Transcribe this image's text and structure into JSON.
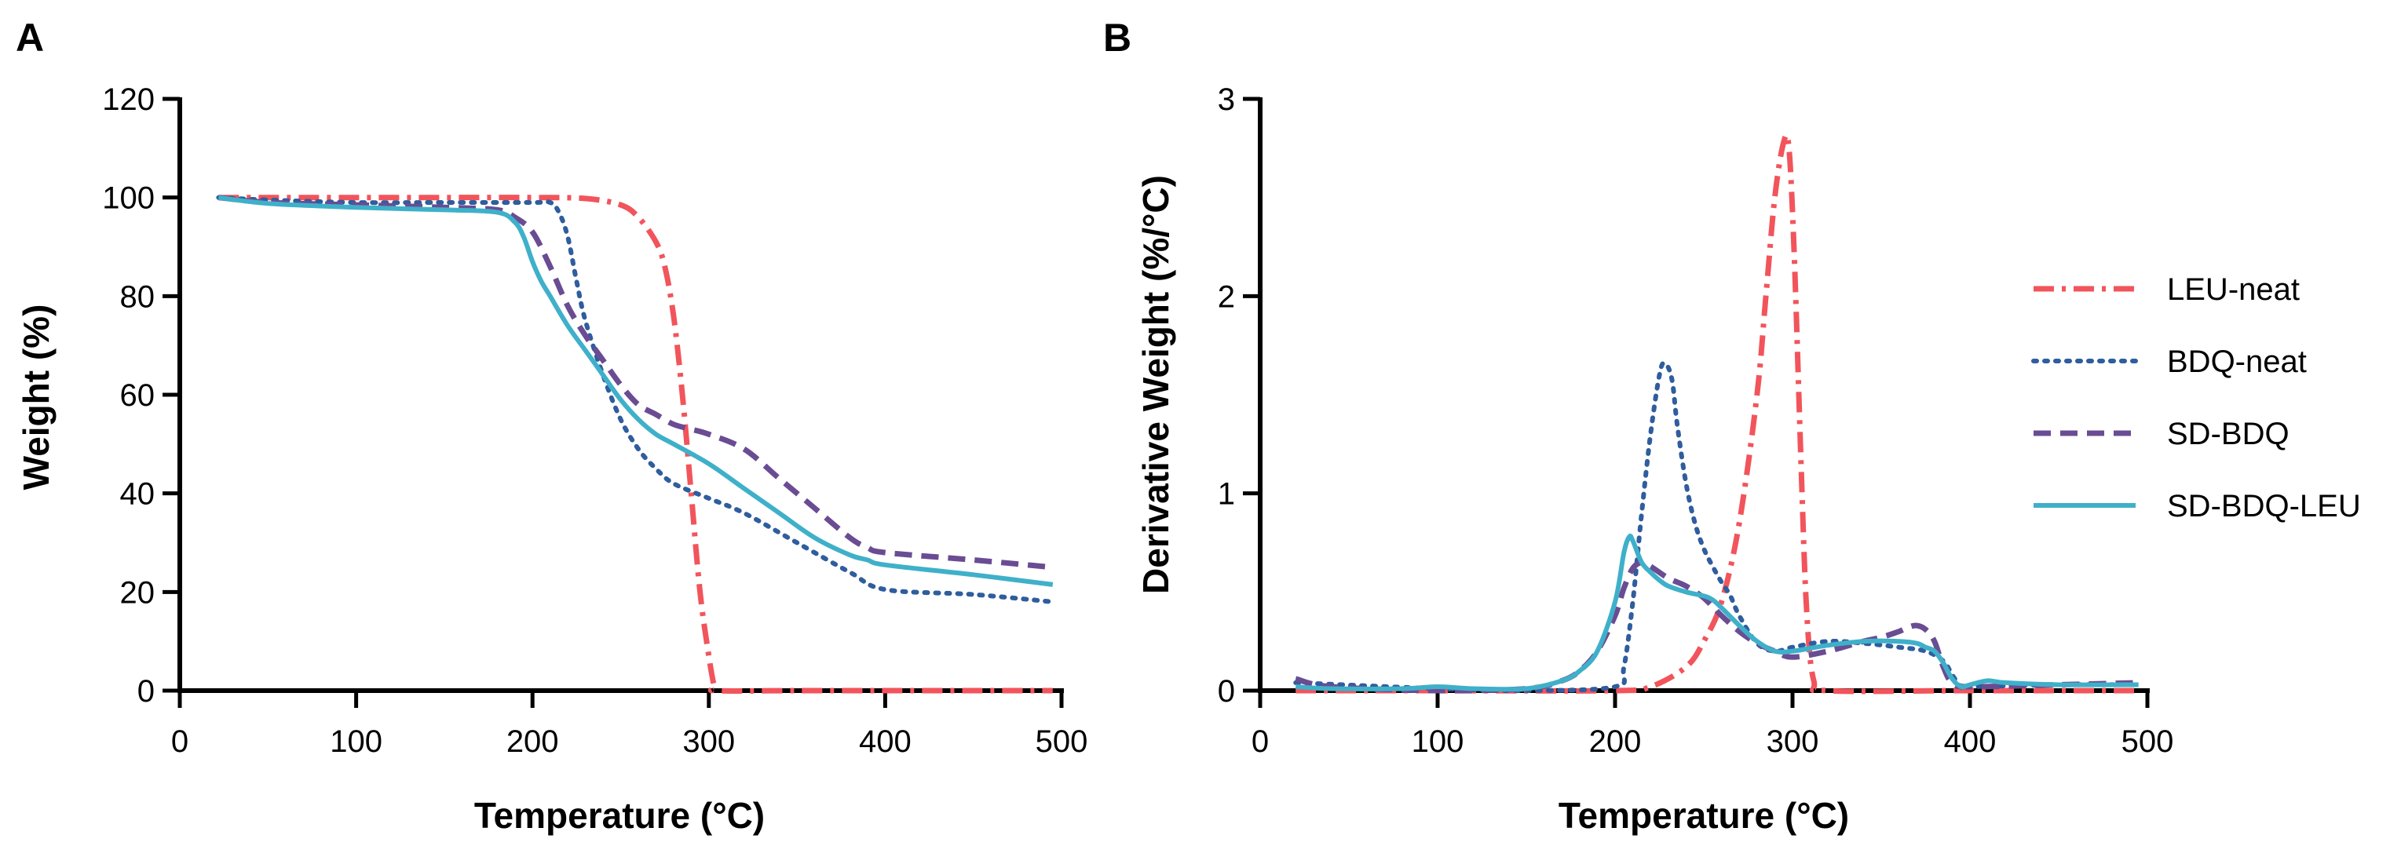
{
  "colors": {
    "LEU-neat": "#F2545B",
    "BDQ-neat": "#2F5D9E",
    "SD-BDQ": "#6A4C93",
    "SD-BDQ-LEU": "#3FB0C9"
  },
  "chart_data": [
    {
      "panel": "A",
      "type": "line",
      "title": "",
      "xlabel": "Temperature (°C)",
      "ylabel": "Weight (%)",
      "xlim": [
        0,
        500
      ],
      "ylim": [
        0,
        120
      ],
      "xticks": [
        0,
        100,
        200,
        300,
        400,
        500
      ],
      "yticks": [
        0,
        20,
        40,
        60,
        80,
        100,
        120
      ],
      "grid": false,
      "series": [
        {
          "name": "LEU-neat",
          "style": "dashdot",
          "x": [
            22,
            50,
            100,
            150,
            200,
            230,
            250,
            260,
            270,
            275,
            280,
            285,
            290,
            295,
            300,
            303,
            305,
            350,
            400,
            450,
            495
          ],
          "y": [
            100,
            100,
            100,
            100,
            100,
            99.8,
            98.5,
            96,
            91,
            86,
            76,
            60,
            40,
            20,
            7,
            1,
            0,
            0,
            0,
            0,
            0
          ]
        },
        {
          "name": "BDQ-neat",
          "style": "dotted",
          "x": [
            22,
            50,
            100,
            150,
            200,
            210,
            215,
            220,
            225,
            230,
            240,
            250,
            260,
            270,
            280,
            300,
            320,
            350,
            380,
            400,
            450,
            495
          ],
          "y": [
            100,
            99.5,
            99,
            99,
            99,
            99,
            97,
            92,
            83,
            75,
            64,
            55,
            49,
            45,
            42,
            39,
            36,
            30,
            24,
            20.5,
            19.5,
            18
          ]
        },
        {
          "name": "SD-BDQ",
          "style": "dashed",
          "x": [
            22,
            50,
            100,
            150,
            180,
            190,
            200,
            210,
            220,
            230,
            240,
            250,
            260,
            270,
            280,
            290,
            300,
            320,
            340,
            360,
            380,
            390,
            400,
            450,
            495
          ],
          "y": [
            100,
            99,
            98.5,
            98,
            97.5,
            96,
            93,
            86,
            78,
            72,
            67,
            62,
            58,
            56,
            54,
            53,
            52,
            49,
            43,
            37,
            31,
            29,
            28,
            26.5,
            25
          ]
        },
        {
          "name": "SD-BDQ-LEU",
          "style": "solid",
          "x": [
            22,
            50,
            100,
            150,
            180,
            190,
            195,
            200,
            205,
            210,
            220,
            230,
            240,
            250,
            260,
            270,
            280,
            300,
            320,
            340,
            360,
            380,
            390,
            400,
            450,
            495
          ],
          "y": [
            100,
            98.8,
            98,
            97.5,
            97,
            95,
            92,
            87,
            83,
            80,
            74,
            69,
            64,
            59,
            55,
            52,
            50,
            46,
            41,
            36,
            31,
            27.5,
            26.5,
            25.5,
            23.5,
            21.5
          ]
        }
      ]
    },
    {
      "panel": "B",
      "type": "line",
      "title": "",
      "xlabel": "Temperature (°C)",
      "ylabel": "Derivative  Weight (%/°C)",
      "xlim": [
        0,
        500
      ],
      "ylim": [
        0,
        3
      ],
      "xticks": [
        0,
        100,
        200,
        300,
        400,
        500
      ],
      "yticks": [
        0,
        1,
        2,
        3
      ],
      "grid": false,
      "legend_position": "right",
      "series": [
        {
          "name": "LEU-neat",
          "style": "dashdot",
          "x": [
            20,
            100,
            200,
            220,
            240,
            250,
            260,
            270,
            280,
            285,
            290,
            295,
            298,
            301,
            305,
            308,
            312,
            320,
            400,
            495
          ],
          "y": [
            0,
            0,
            0,
            0.02,
            0.12,
            0.25,
            0.45,
            0.85,
            1.5,
            2.0,
            2.5,
            2.78,
            2.75,
            2.2,
            1.1,
            0.4,
            0.05,
            0,
            0,
            0
          ]
        },
        {
          "name": "BDQ-neat",
          "style": "dotted",
          "x": [
            20,
            100,
            150,
            200,
            205,
            210,
            215,
            220,
            225,
            228,
            232,
            235,
            240,
            245,
            250,
            255,
            260,
            265,
            270,
            280,
            290,
            300,
            320,
            340,
            360,
            375,
            385,
            390,
            395,
            400,
            450,
            495
          ],
          "y": [
            0.04,
            0.01,
            0,
            0.02,
            0.12,
            0.45,
            0.9,
            1.3,
            1.6,
            1.66,
            1.58,
            1.35,
            1.05,
            0.85,
            0.72,
            0.63,
            0.55,
            0.48,
            0.38,
            0.24,
            0.2,
            0.22,
            0.25,
            0.24,
            0.22,
            0.2,
            0.15,
            0.08,
            0.02,
            0.02,
            0.03,
            0.03
          ]
        },
        {
          "name": "SD-BDQ",
          "style": "dashed",
          "x": [
            20,
            40,
            100,
            150,
            170,
            180,
            190,
            200,
            205,
            210,
            215,
            220,
            230,
            240,
            250,
            260,
            270,
            280,
            290,
            300,
            320,
            340,
            350,
            360,
            365,
            370,
            375,
            380,
            385,
            390,
            400,
            450,
            495
          ],
          "y": [
            0.06,
            0.02,
            0,
            0.01,
            0.05,
            0.1,
            0.2,
            0.38,
            0.52,
            0.62,
            0.65,
            0.63,
            0.57,
            0.53,
            0.47,
            0.38,
            0.3,
            0.24,
            0.2,
            0.17,
            0.2,
            0.25,
            0.27,
            0.3,
            0.32,
            0.33,
            0.31,
            0.25,
            0.12,
            0.04,
            0.02,
            0.03,
            0.04
          ]
        },
        {
          "name": "SD-BDQ-LEU",
          "style": "solid",
          "x": [
            20,
            40,
            80,
            100,
            120,
            150,
            170,
            180,
            190,
            200,
            205,
            208,
            210,
            215,
            220,
            225,
            230,
            240,
            250,
            255,
            260,
            270,
            280,
            290,
            300,
            320,
            340,
            360,
            370,
            375,
            380,
            385,
            390,
            395,
            400,
            410,
            420,
            450,
            495
          ],
          "y": [
            0.02,
            0.01,
            0.01,
            0.02,
            0.01,
            0.01,
            0.05,
            0.1,
            0.2,
            0.45,
            0.7,
            0.78,
            0.76,
            0.65,
            0.6,
            0.56,
            0.53,
            0.5,
            0.48,
            0.46,
            0.42,
            0.33,
            0.25,
            0.2,
            0.2,
            0.23,
            0.25,
            0.25,
            0.24,
            0.22,
            0.2,
            0.14,
            0.06,
            0.02,
            0.03,
            0.05,
            0.04,
            0.03,
            0.03
          ]
        }
      ]
    }
  ]
}
